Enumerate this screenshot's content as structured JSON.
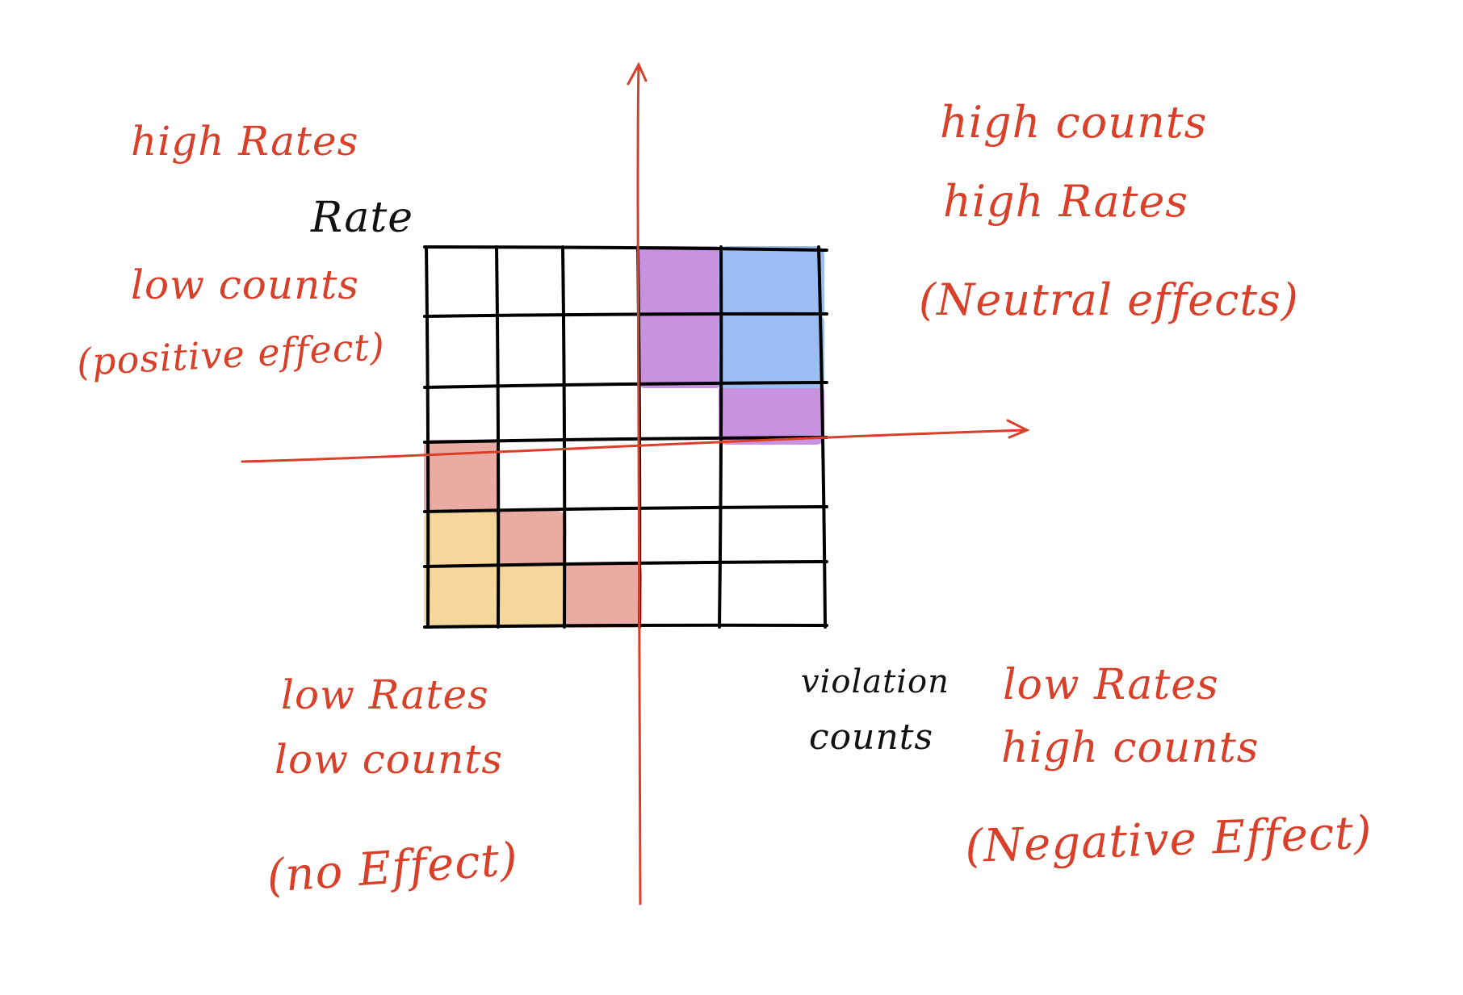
{
  "axes": {
    "y_label": "Rate",
    "x_label_line1": "violation",
    "x_label_line2": "counts"
  },
  "quadrants": {
    "top_left": {
      "line1": "high Rates",
      "line2": "low counts",
      "line3": "(positive effect)"
    },
    "top_right": {
      "line1": "high counts",
      "line2": "high Rates",
      "line3": "(Neutral effects)"
    },
    "bottom_left": {
      "line1": "low Rates",
      "line2": "low counts",
      "line3": "(no Effect)"
    },
    "bottom_right": {
      "line1": "low Rates",
      "line2": "high counts",
      "line3": "(Negative Effect)"
    }
  },
  "grid": {
    "rows": 6,
    "cols": 5,
    "highlighted_cells": [
      {
        "row": 0,
        "col": 3,
        "category": "purple"
      },
      {
        "row": 1,
        "col": 3,
        "category": "purple"
      },
      {
        "row": 2,
        "col": 4,
        "category": "purple"
      },
      {
        "row": 0,
        "col": 4,
        "category": "blue"
      },
      {
        "row": 1,
        "col": 4,
        "category": "blue"
      },
      {
        "row": 3,
        "col": 0,
        "category": "salmon"
      },
      {
        "row": 4,
        "col": 1,
        "category": "salmon"
      },
      {
        "row": 5,
        "col": 2,
        "category": "salmon"
      },
      {
        "row": 4,
        "col": 0,
        "category": "orange"
      },
      {
        "row": 5,
        "col": 0,
        "category": "orange"
      },
      {
        "row": 5,
        "col": 1,
        "category": "orange"
      }
    ]
  },
  "colors": {
    "purple": "#c992e0",
    "blue": "#9bbdf4",
    "salmon": "#eaaba2",
    "orange": "#f6d79b",
    "axis": "#d9402a",
    "grid": "#000000"
  }
}
